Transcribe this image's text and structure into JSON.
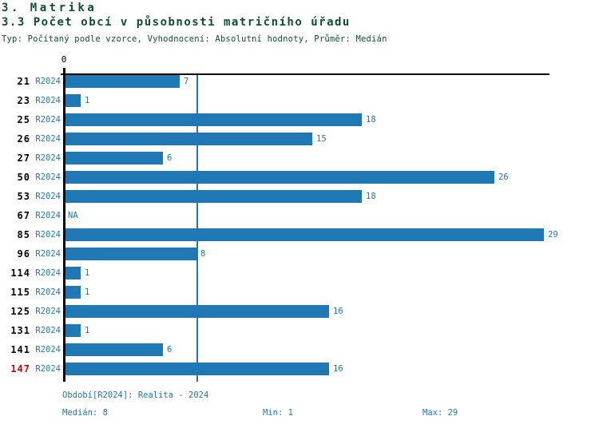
{
  "header": {
    "title": "3. Matrika",
    "subtitle": "3.3 Počet obcí v působnosti matričního úřadu",
    "meta": "Typ: Počítaný podle vzorce, Vyhodnocení: Absolutní hodnoty, Průměr: Medián"
  },
  "colors": {
    "bar": "#1f77b4",
    "accent_blue": "#1f77b4",
    "highlight_red": "#cc0000",
    "header_green": "#0d4f2f",
    "axis_black": "#000000"
  },
  "chart_data": {
    "type": "bar",
    "orientation": "horizontal",
    "title": "3.3 Počet obcí v působnosti matričního úřadu",
    "categories": [
      "21",
      "23",
      "25",
      "26",
      "27",
      "50",
      "53",
      "67",
      "85",
      "96",
      "114",
      "115",
      "125",
      "131",
      "141",
      "147"
    ],
    "series": [
      {
        "name": "R2024",
        "values": [
          7,
          1,
          18,
          15,
          6,
          26,
          18,
          null,
          29,
          8,
          1,
          1,
          16,
          1,
          6,
          16
        ]
      }
    ],
    "na_label": "NA",
    "highlight_category": "147",
    "xlim": [
      0,
      29
    ],
    "x_ticks": [
      "0"
    ],
    "median_line_value": 8,
    "grid": false,
    "legend_position": "none"
  },
  "footer": {
    "period": "Období[R2024]: Realita - 2024",
    "median": "Medián: 8",
    "min": "Min: 1",
    "max": "Max: 29"
  }
}
